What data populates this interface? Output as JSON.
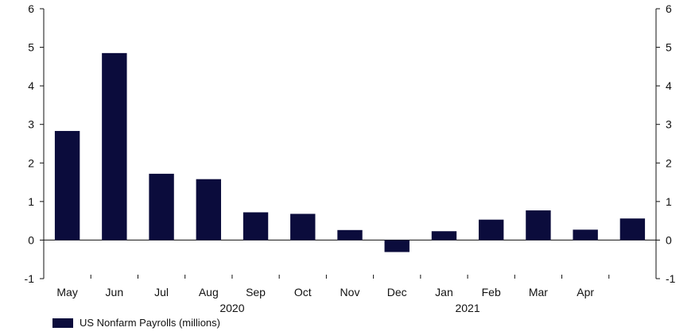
{
  "chart_data": {
    "type": "bar",
    "categories": [
      "May",
      "Jun",
      "Jul",
      "Aug",
      "Sep",
      "Oct",
      "Nov",
      "Dec",
      "Jan",
      "Feb",
      "Mar",
      "Apr",
      ""
    ],
    "series": [
      {
        "name": "US Nonfarm Payrolls (millions)",
        "values": [
          2.83,
          4.85,
          1.72,
          1.58,
          0.72,
          0.68,
          0.26,
          -0.31,
          0.23,
          0.53,
          0.77,
          0.27,
          0.56
        ]
      }
    ],
    "year_labels": [
      {
        "label": "2020",
        "after_category_index": 4
      },
      {
        "label": "2021",
        "after_category_index": 9
      }
    ],
    "title": "",
    "xlabel": "",
    "ylabel": "",
    "ylim": [
      -1,
      6
    ],
    "yticks": [
      "-1",
      "0",
      "1",
      "2",
      "3",
      "4",
      "5",
      "6"
    ],
    "right_axis_mirror": true,
    "grid": false,
    "legend_position": "bottom-left",
    "colors": {
      "bar": "#0b0c3c",
      "axis": "#111111"
    }
  }
}
